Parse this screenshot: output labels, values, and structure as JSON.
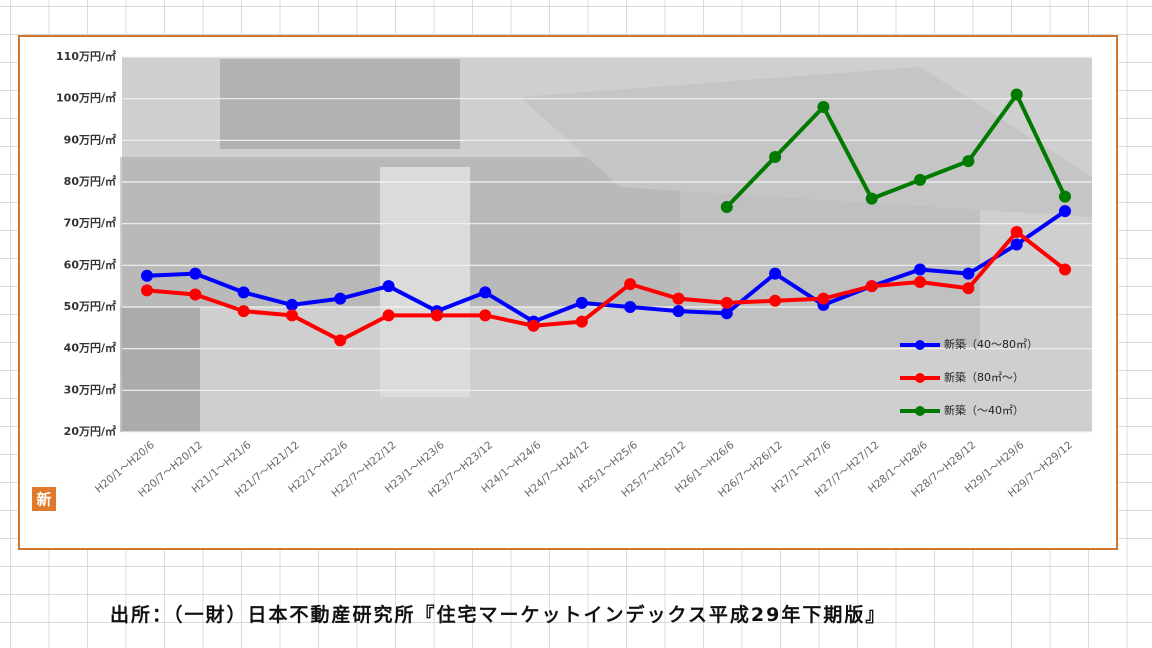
{
  "chart_data": {
    "type": "line",
    "categories": [
      "H20/1～H20/6",
      "H20/7～H20/12",
      "H21/1～H21/6",
      "H21/7～H21/12",
      "H22/1～H22/6",
      "H22/7～H22/12",
      "H23/1～H23/6",
      "H23/7～H23/12",
      "H24/1～H24/6",
      "H24/7～H24/12",
      "H25/1～H25/6",
      "H25/7～H25/12",
      "H26/1～H26/6",
      "H26/7～H26/12",
      "H27/1～H27/6",
      "H27/7～H27/12",
      "H28/1～H28/6",
      "H28/7～H28/12",
      "H29/1～H29/6",
      "H29/7～H29/12"
    ],
    "series": [
      {
        "name": "新築（40～80㎡）",
        "color": "#0000ff",
        "values": [
          57.5,
          58,
          53.5,
          50.5,
          52,
          55,
          49,
          53.5,
          46.5,
          51,
          50,
          49,
          48.5,
          58,
          50.5,
          55,
          59,
          58,
          65,
          73
        ]
      },
      {
        "name": "新築（80㎡～）",
        "color": "#ff0000",
        "values": [
          54,
          53,
          49,
          48,
          42,
          48,
          48,
          48,
          45.5,
          46.5,
          55.5,
          52,
          51,
          51.5,
          52,
          55,
          56,
          54.5,
          68,
          59
        ]
      },
      {
        "name": "新築（～40㎡）",
        "color": "#007a00",
        "values": [
          null,
          null,
          null,
          null,
          null,
          null,
          null,
          null,
          null,
          null,
          null,
          null,
          74,
          86,
          98,
          76,
          80.5,
          85,
          101,
          76.5
        ]
      }
    ],
    "ylim": [
      20,
      110
    ],
    "yticks": [
      {
        "value": 20,
        "label": "20万円/㎡"
      },
      {
        "value": 30,
        "label": "30万円/㎡"
      },
      {
        "value": 40,
        "label": "40万円/㎡"
      },
      {
        "value": 50,
        "label": "50万円/㎡"
      },
      {
        "value": 60,
        "label": "60万円/㎡"
      },
      {
        "value": 70,
        "label": "70万円/㎡"
      },
      {
        "value": 80,
        "label": "80万円/㎡"
      },
      {
        "value": 90,
        "label": "90万円/㎡"
      },
      {
        "value": 100,
        "label": "100万円/㎡"
      },
      {
        "value": 110,
        "label": "110万円/㎡"
      }
    ],
    "grid": true,
    "legend": "lower right",
    "icon": "新"
  },
  "source": "出所：（一財）日本不動産研究所『住宅マーケットインデックス平成29年下期版』"
}
